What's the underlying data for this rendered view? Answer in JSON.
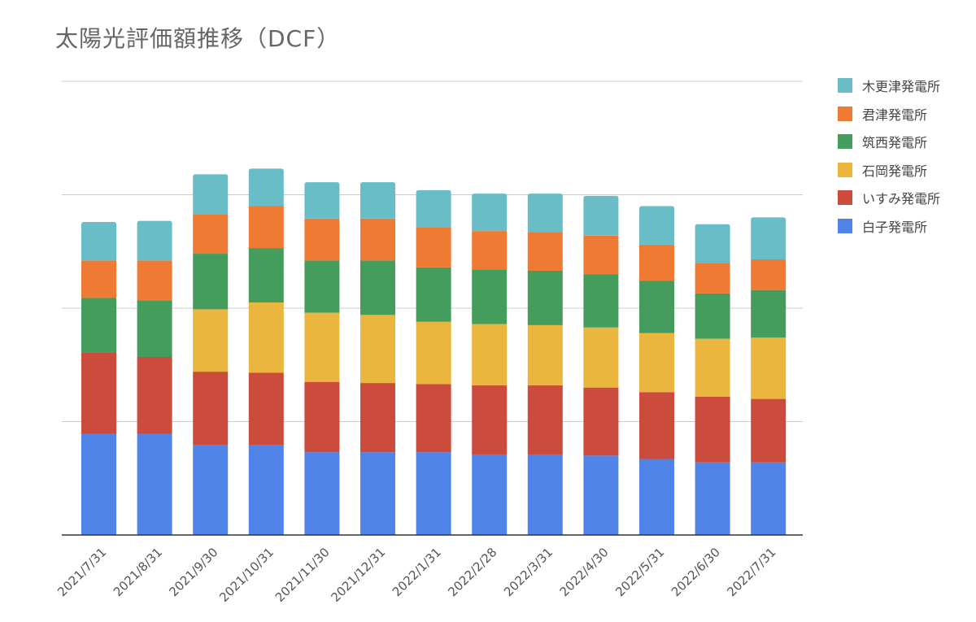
{
  "chart_data": {
    "type": "bar",
    "stacked": true,
    "title": "太陽光評価額推移（DCF）",
    "xlabel": "",
    "ylabel": "",
    "y_tick_labels_visible": false,
    "grid": true,
    "legend_position": "right",
    "ylim": [
      0,
      400
    ],
    "categories": [
      "2021/7/31",
      "2021/8/31",
      "2021/9/30",
      "2021/10/31",
      "2021/11/30",
      "2021/12/31",
      "2022/1/31",
      "2022/2/28",
      "2022/3/31",
      "2022/4/30",
      "2022/5/31",
      "2022/6/30",
      "2022/7/31"
    ],
    "series": [
      {
        "name": "白子発電所",
        "color": "#5084E8",
        "values": [
          89,
          89,
          79,
          79,
          73,
          73,
          73,
          71,
          71,
          70,
          67,
          64,
          64
        ]
      },
      {
        "name": "いすみ発電所",
        "color": "#CB4B3D",
        "values": [
          72,
          68,
          65,
          64,
          62,
          61,
          60,
          61,
          61,
          60,
          59,
          58,
          56
        ]
      },
      {
        "name": "石岡発電所",
        "color": "#EAB63D",
        "values": [
          0,
          0,
          55,
          62,
          61,
          60,
          55,
          54,
          53,
          53,
          52,
          51,
          54
        ]
      },
      {
        "name": "筑西発電所",
        "color": "#449D5C",
        "values": [
          48,
          50,
          49,
          48,
          46,
          48,
          48,
          48,
          48,
          47,
          46,
          40,
          42
        ]
      },
      {
        "name": "君津発電所",
        "color": "#EF7A33",
        "values": [
          33,
          35,
          35,
          37,
          37,
          37,
          35,
          34,
          34,
          34,
          32,
          27,
          27
        ]
      },
      {
        "name": "木更津発電所",
        "color": "#68BDC6",
        "values": [
          34,
          35,
          35,
          33,
          32,
          32,
          33,
          33,
          34,
          35,
          34,
          34,
          37
        ]
      }
    ]
  }
}
